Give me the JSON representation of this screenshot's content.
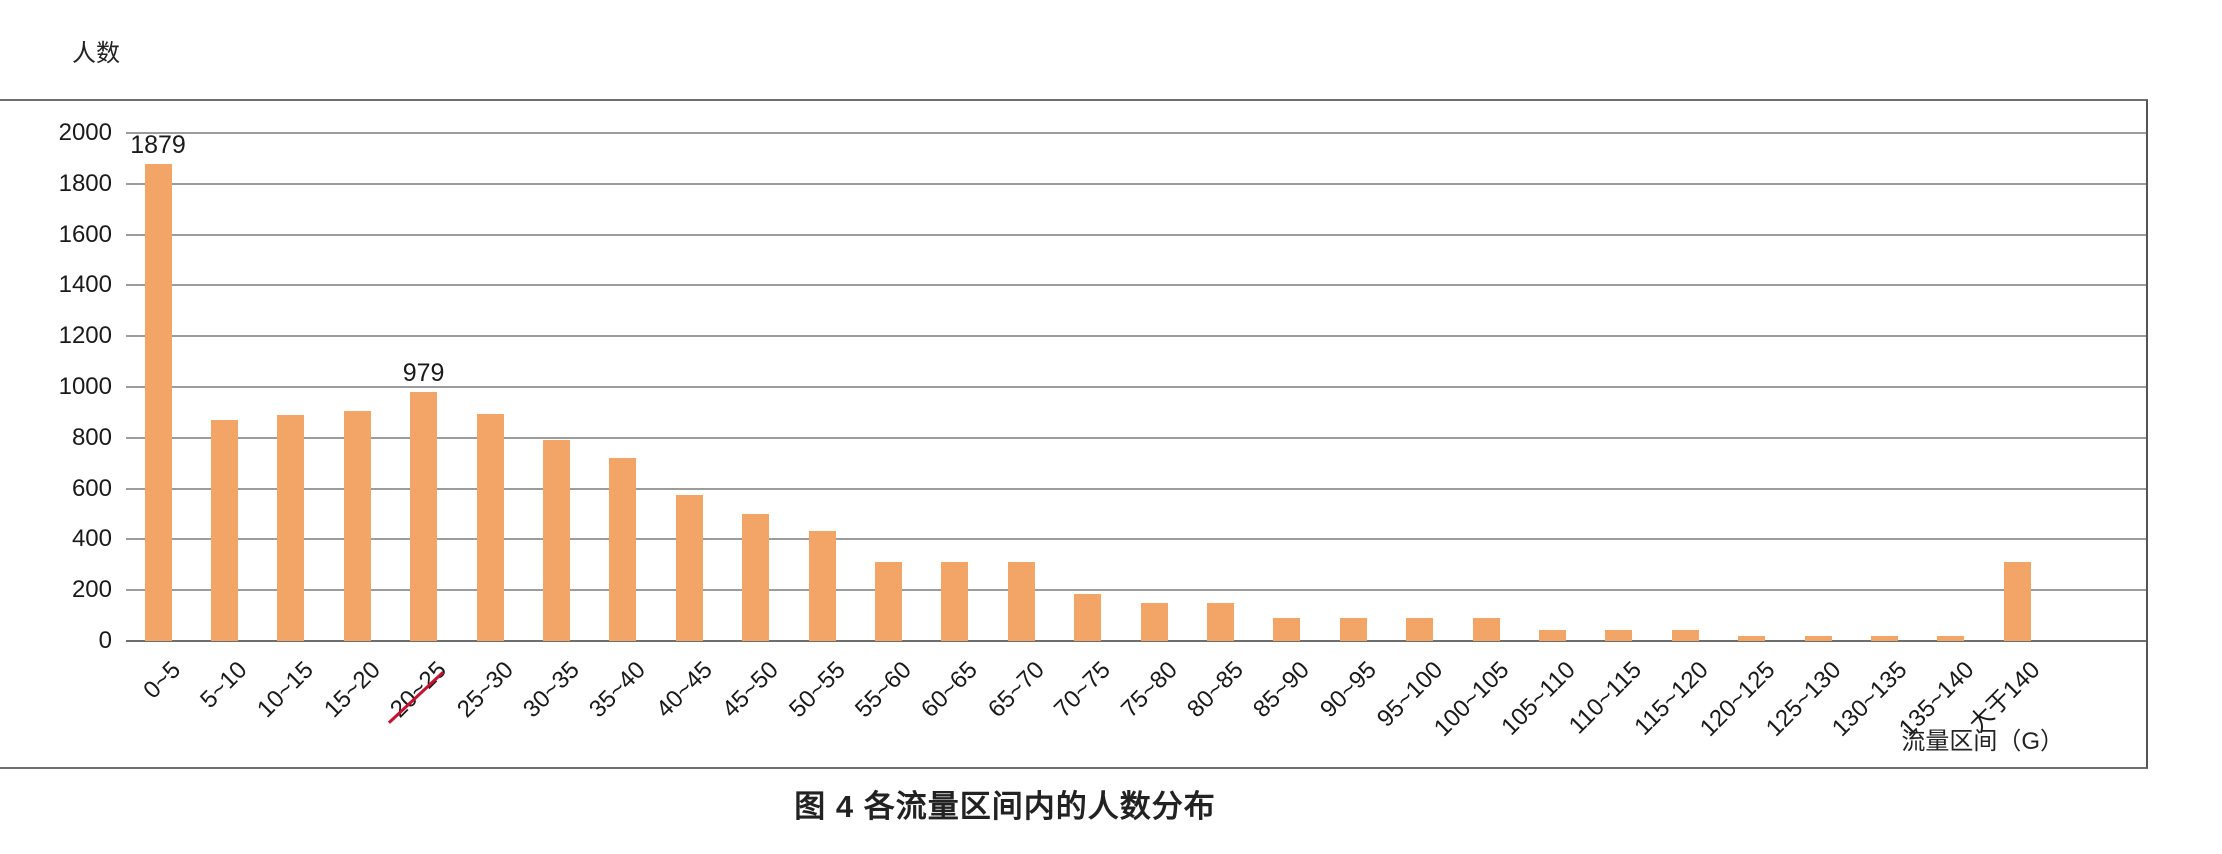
{
  "y_axis_title": "人数",
  "x_axis_title": "流量区间（G）",
  "caption": "图 4 各流量区间内的人数分布",
  "colors": {
    "bar": "#f2a567",
    "grid": "#9c9c9c",
    "border": "#6e6e6e",
    "text": "#1a1a1a",
    "highlight": "#c41230"
  },
  "chart_data": {
    "type": "bar",
    "title": "图 4 各流量区间内的人数分布",
    "xlabel": "流量区间（G）",
    "ylabel": "人数",
    "ylim": [
      0,
      2000
    ],
    "yticks": [
      0,
      200,
      400,
      600,
      800,
      1000,
      1200,
      1400,
      1600,
      1800,
      2000
    ],
    "grid": "horizontal",
    "legend": "none",
    "categories": [
      "0~5",
      "5~10",
      "10~15",
      "15~20",
      "20~25",
      "25~30",
      "30~35",
      "35~40",
      "40~45",
      "45~50",
      "50~55",
      "55~60",
      "60~65",
      "65~70",
      "70~75",
      "75~80",
      "80~85",
      "85~90",
      "90~95",
      "95~100",
      "100~105",
      "105~110",
      "110~115",
      "115~120",
      "120~125",
      "125~130",
      "130~135",
      "135~140",
      "大于140"
    ],
    "values": [
      1879,
      870,
      890,
      905,
      979,
      895,
      790,
      720,
      575,
      500,
      435,
      310,
      310,
      310,
      185,
      150,
      150,
      90,
      90,
      90,
      90,
      45,
      45,
      45,
      20,
      20,
      20,
      20,
      310
    ],
    "bar_labels": [
      {
        "index": 0,
        "text": "1879"
      },
      {
        "index": 4,
        "text": "979"
      }
    ],
    "highlight": {
      "index": 4,
      "type": "red-underline"
    }
  }
}
